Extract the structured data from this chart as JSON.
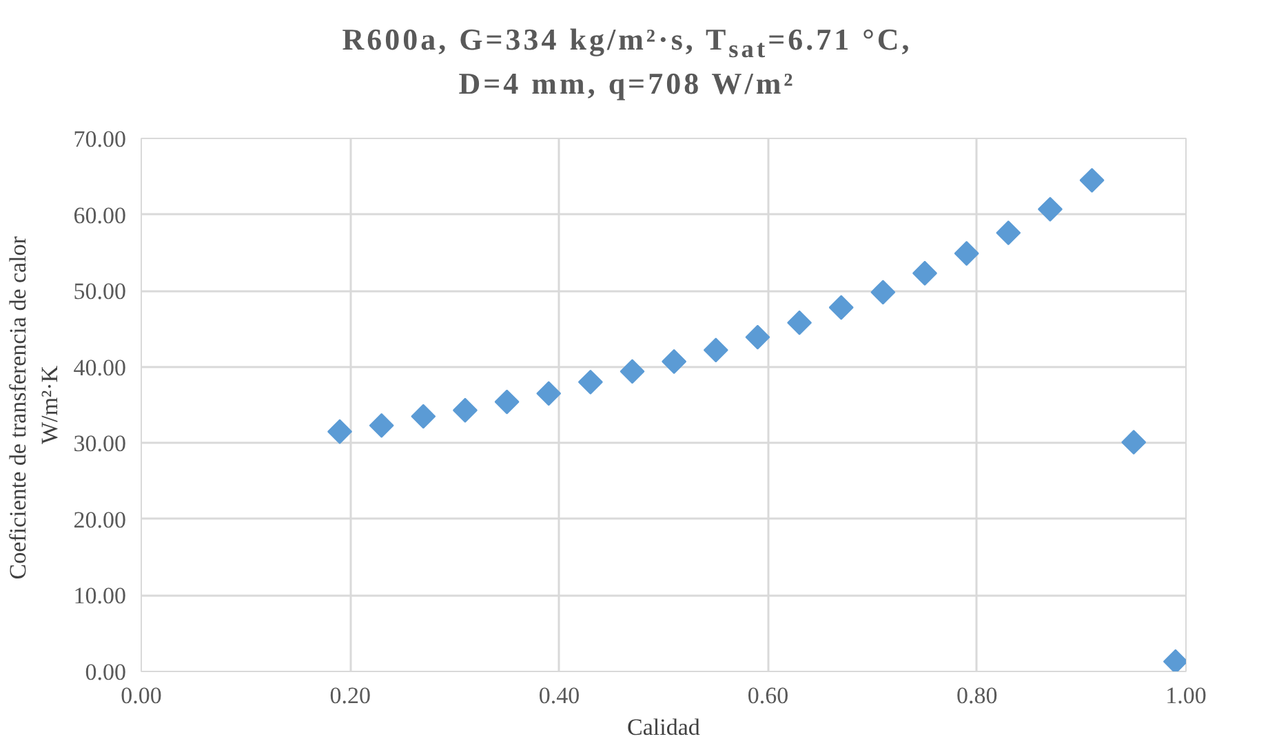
{
  "chart_data": {
    "type": "scatter",
    "title": "R600a, G=334 kg/m²·s, T$_{sat}$=6.71 °C,\nD=4 mm, q=708 W/m²",
    "xlabel": "Calidad",
    "ylabel": "Coeficiente de transferencia  de calor\nW/m²·K",
    "x": [
      0.19,
      0.23,
      0.27,
      0.31,
      0.35,
      0.39,
      0.43,
      0.47,
      0.51,
      0.55,
      0.59,
      0.63,
      0.67,
      0.71,
      0.75,
      0.79,
      0.83,
      0.87,
      0.91,
      0.95,
      0.99
    ],
    "series": [
      {
        "color": "#5b9bd5",
        "values": [
          31.5,
          32.3,
          33.5,
          34.3,
          35.4,
          36.5,
          38.0,
          39.4,
          40.7,
          42.2,
          43.9,
          45.8,
          47.8,
          49.8,
          52.3,
          54.9,
          57.6,
          60.7,
          64.5,
          30.1,
          1.3
        ]
      }
    ],
    "xlim": [
      0,
      1
    ],
    "ylim": [
      0,
      70
    ],
    "xticks": [
      {
        "value": 0,
        "label": "0.00"
      },
      {
        "value": 0.2,
        "label": "0.20"
      },
      {
        "value": 0.4,
        "label": "0.40"
      },
      {
        "value": 0.6,
        "label": "0.60"
      },
      {
        "value": 0.8,
        "label": "0.80"
      },
      {
        "value": 1,
        "label": "1.00"
      }
    ],
    "yticks": [
      {
        "value": 0,
        "label": "0.00"
      },
      {
        "value": 10,
        "label": "10.00"
      },
      {
        "value": 20,
        "label": "20.00"
      },
      {
        "value": 30,
        "label": "30.00"
      },
      {
        "value": 40,
        "label": "40.00"
      },
      {
        "value": 50,
        "label": "50.00"
      },
      {
        "value": 60,
        "label": "60.00"
      },
      {
        "value": 70,
        "label": "70.00"
      }
    ],
    "grid": true,
    "marker": "diamond"
  }
}
